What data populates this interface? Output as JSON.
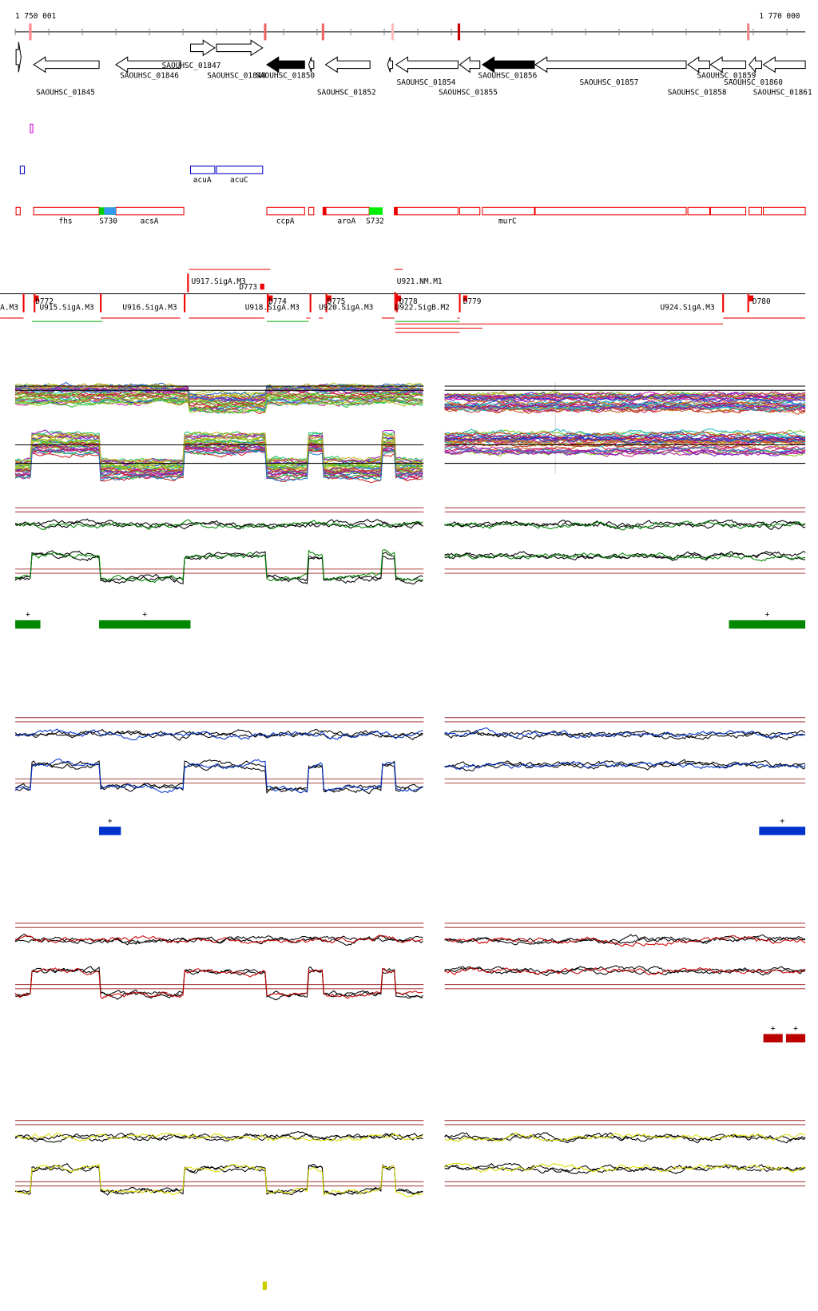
{
  "header": {
    "start": "1 750 001",
    "end": "1 770 000"
  },
  "genes": [
    "SAOUHSC_01845",
    "SAOUHSC_01846",
    "SAOUHSC_01847",
    "SAOUHSC_01848",
    "SAOUHSC_01850",
    "SAOUHSC_01852",
    "SAOUHSC_01854",
    "SAOUHSC_01855",
    "SAOUHSC_01856",
    "SAOUHSC_01857",
    "SAOUHSC_01858",
    "SAOUHSC_01859",
    "SAOUHSC_01860",
    "SAOUHSC_01861"
  ],
  "operons": [
    "acuA",
    "acuC"
  ],
  "features": [
    "fhs",
    "S730",
    "acsA",
    "ccpA",
    "aroA",
    "S732",
    "murC"
  ],
  "promoters": [
    "U917.SigA.M3",
    "D773",
    "U921.NM.M1",
    "A.M3",
    "D772",
    "U915.SigA.M3",
    "U916.SigA.M3",
    "D774",
    "U918.SigA.M3",
    "D775",
    "U920.SigA.M3",
    "D778",
    "U922.SigB.M2",
    "D779",
    "U924.SigA.M3",
    "D780"
  ],
  "tracks": [
    {
      "plus": [
        "+",
        "+",
        "+"
      ]
    },
    {
      "plus": [
        "+",
        "+"
      ]
    },
    {
      "plus": [
        "+",
        "+"
      ]
    }
  ]
}
